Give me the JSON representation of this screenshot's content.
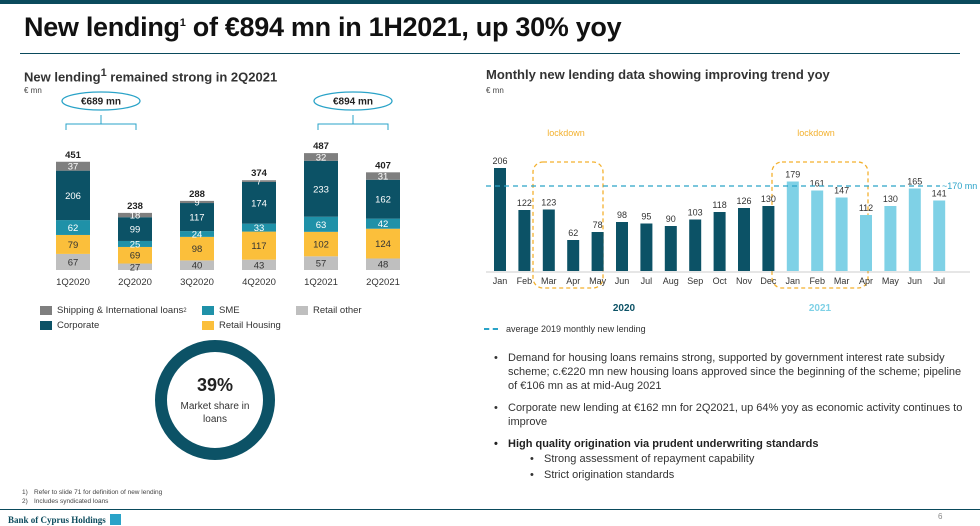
{
  "header": {
    "title_main": "New lending",
    "title_sup": "1",
    "title_rest": " of €894 mn in 1H2021, up 30% yoy"
  },
  "left": {
    "subtitle_main": "New lending",
    "subtitle_sup": "1",
    "subtitle_rest": " remained strong in 2Q2021",
    "unit": "€ mn",
    "bracket_labels": [
      "€689 mn",
      "€894 mn"
    ],
    "legend": [
      {
        "label": "Shipping & International loans",
        "sup": "2",
        "color": "#7f7f7f"
      },
      {
        "label": "SME",
        "sup": "",
        "color": "#1f91a8"
      },
      {
        "label": "Retail other",
        "sup": "",
        "color": "#bfbfbf"
      },
      {
        "label": "Corporate",
        "sup": "",
        "color": "#0c5266"
      },
      {
        "label": "Retail Housing",
        "sup": "",
        "color": "#fbbf3b"
      }
    ],
    "donut": {
      "value": "39%",
      "label": "Market share in loans"
    }
  },
  "right": {
    "subtitle": "Monthly new lending data showing improving trend yoy",
    "unit": "€ mn",
    "lockdown_labels": [
      "lockdown",
      "lockdown"
    ],
    "year_labels": [
      "2020",
      "2021"
    ],
    "avg_label": "~170 mn",
    "avg_legend": "average 2019 monthly new lending"
  },
  "bullets": [
    "Demand for housing loans remains strong, supported by government interest rate subsidy scheme; c.€220 mn new housing loans approved since the beginning of the scheme; pipeline of €106 mn as at mid-Aug 2021",
    "Corporate new lending at €162 mn for 2Q2021, up 64% yoy as economic activity continues to improve"
  ],
  "bullet_bold": "High quality origination via prudent underwriting standards",
  "sub_bullets": [
    "Strong assessment of repayment capability",
    "Strict origination standards"
  ],
  "footnotes": [
    {
      "num": "1)",
      "text": "Refer to slide 71 for definition of new lending"
    },
    {
      "num": "2)",
      "text": "Includes syndicated loans"
    }
  ],
  "footer": {
    "brand": "Bank of Cyprus Holdings",
    "page": "6"
  },
  "chart_data": [
    {
      "type": "bar",
      "stacked": true,
      "categories": [
        "1Q2020",
        "2Q2020",
        "3Q2020",
        "4Q2020",
        "1Q2021",
        "2Q2021"
      ],
      "series": [
        {
          "name": "Retail other",
          "values": [
            67,
            27,
            40,
            43,
            57,
            48
          ],
          "color": "#bfbfbf"
        },
        {
          "name": "Retail Housing",
          "values": [
            79,
            69,
            98,
            117,
            102,
            124
          ],
          "color": "#fbbf3b"
        },
        {
          "name": "SME",
          "values": [
            62,
            25,
            24,
            33,
            63,
            42
          ],
          "color": "#1f91a8"
        },
        {
          "name": "Corporate",
          "values": [
            206,
            99,
            117,
            174,
            233,
            162
          ],
          "color": "#0c5266"
        },
        {
          "name": "Shipping & International loans",
          "values": [
            37,
            18,
            9,
            7,
            32,
            31
          ],
          "color": "#7f7f7f"
        }
      ],
      "totals": [
        451,
        238,
        288,
        374,
        487,
        407
      ]
    },
    {
      "type": "bar",
      "categories": [
        "Jan",
        "Feb",
        "Mar",
        "Apr",
        "May",
        "Jun",
        "Jul",
        "Aug",
        "Sep",
        "Oct",
        "Nov",
        "Dec",
        "Jan",
        "Feb",
        "Mar",
        "Apr",
        "May",
        "Jun",
        "Jul"
      ],
      "values": [
        206,
        122,
        123,
        62,
        78,
        98,
        95,
        90,
        103,
        118,
        126,
        130,
        179,
        161,
        147,
        112,
        130,
        165,
        141
      ],
      "years": [
        "2020",
        "2020",
        "2020",
        "2020",
        "2020",
        "2020",
        "2020",
        "2020",
        "2020",
        "2020",
        "2020",
        "2020",
        "2021",
        "2021",
        "2021",
        "2021",
        "2021",
        "2021",
        "2021"
      ],
      "colors": {
        "2020": "#0c5266",
        "2021": "#7fd1e6"
      },
      "reference_line": {
        "value": 170,
        "label": "~170 mn"
      }
    }
  ]
}
